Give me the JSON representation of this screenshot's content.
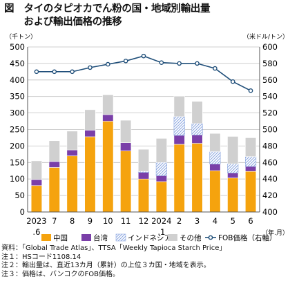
{
  "figure": {
    "title_line1": "図　タイのタピオカでん粉の国・地域別輸出量",
    "title_line2": "　　および輸出価格の推移"
  },
  "chart_data": {
    "type": "bar",
    "stacked": true,
    "categories": [
      "2023\n.6",
      "7",
      "8",
      "9",
      "10",
      "11",
      "12",
      "2024\n.1",
      "2",
      "3",
      "4",
      "5",
      "6"
    ],
    "x_unit_label": "（年.月）",
    "y_left": {
      "label": "（千トン）",
      "min": 0,
      "max": 500,
      "step": 50
    },
    "y_right": {
      "label": "（米ドル/トン）",
      "min": 400,
      "max": 600,
      "step": 20
    },
    "series": [
      {
        "name": "中国",
        "color": "#f5a30e",
        "pattern": "solid",
        "values": [
          80,
          135,
          170,
          228,
          275,
          185,
          100,
          92,
          205,
          208,
          125,
          103,
          123
        ]
      },
      {
        "name": "台湾",
        "color": "#7a3fa8",
        "pattern": "solid",
        "values": [
          18,
          18,
          18,
          20,
          20,
          25,
          20,
          18,
          27,
          25,
          20,
          15,
          15
        ]
      },
      {
        "name": "インドネシア",
        "color": "#9fb3e6",
        "pattern": "hatch",
        "values": [
          0,
          0,
          0,
          0,
          0,
          0,
          3,
          40,
          57,
          35,
          38,
          28,
          30
        ]
      },
      {
        "name": "その他",
        "color": "#d0d0d0",
        "pattern": "solid",
        "values": [
          57,
          63,
          57,
          62,
          60,
          68,
          67,
          73,
          62,
          67,
          55,
          83,
          57
        ]
      }
    ],
    "line": {
      "name": "FOB価格（右軸）",
      "color": "#1f4e79",
      "values": [
        570,
        570,
        570,
        575,
        579,
        583,
        589,
        581,
        580,
        580,
        574,
        558,
        547
      ]
    },
    "legend_position": "bottom",
    "grid": true
  },
  "notes": [
    "資料：「Global Trade Atlas」、TTSA「Weekly Tapioca Starch Price」",
    "注１：HSコード1108.14",
    "注２：輸出量は、直近13カ月（累計）の上位３カ国・地域を表示。",
    "注３：価格は、バンコクのFOB価格。"
  ]
}
